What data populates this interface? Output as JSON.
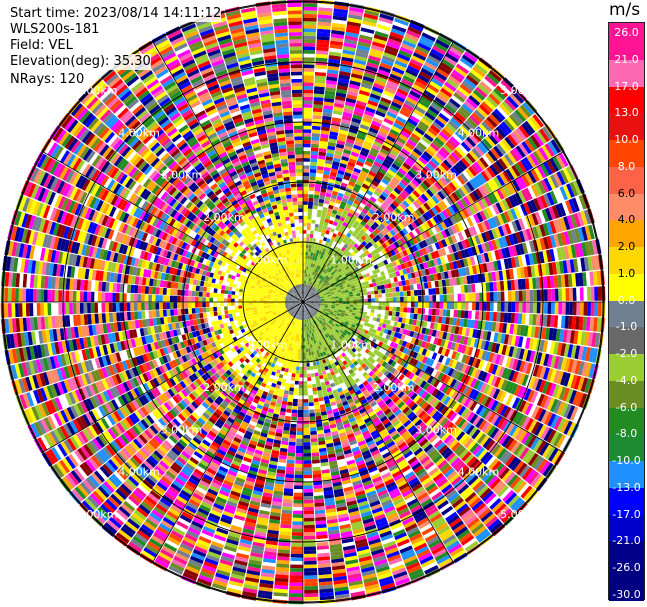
{
  "info": {
    "start_time": "Start time: 2023/08/14 14:11:12",
    "instrument": "WLS200s-181",
    "field": "Field: VEL",
    "elevation": "Elevation(deg): 35.30",
    "nrays": "NRays: 120"
  },
  "colorbar": {
    "unit": "m/s",
    "ticks": [
      "26.0",
      "21.0",
      "17.0",
      "13.0",
      "10.0",
      "8.0",
      "6.0",
      "4.0",
      "2.0",
      "1.0",
      "0.0",
      "-1.0",
      "-2.0",
      "-4.0",
      "-6.0",
      "-8.0",
      "-10.0",
      "-13.0",
      "-17.0",
      "-21.0",
      "-26.0",
      "-30.0"
    ],
    "colors": [
      "#ff1493",
      "#ff69b4",
      "#ff0000",
      "#e81010",
      "#ff4500",
      "#ff6347",
      "#ff8c69",
      "#ffa500",
      "#ffd700",
      "#ffff00",
      "#708090",
      "#696969",
      "#9acd32",
      "#6b8e23",
      "#228b22",
      "#1e8b32",
      "#1e90ff",
      "#0000ff",
      "#0000cd",
      "#00008b",
      "#000080"
    ]
  },
  "chart_data": {
    "type": "heatmap",
    "title": "",
    "field": "VEL",
    "unit": "m/s",
    "nrays": 120,
    "vmin": -30.0,
    "vmax": 30.0,
    "range_rings_km": [
      1.0,
      2.0,
      3.0,
      4.0,
      5.0
    ],
    "ring_labels": [
      "1.00km",
      "2.00km",
      "3.00km",
      "4.00km",
      "5.00km"
    ],
    "signal_region_max_km": 1.0,
    "signal_positive_color": "#ffff00",
    "signal_negative_color": "#228b22"
  }
}
